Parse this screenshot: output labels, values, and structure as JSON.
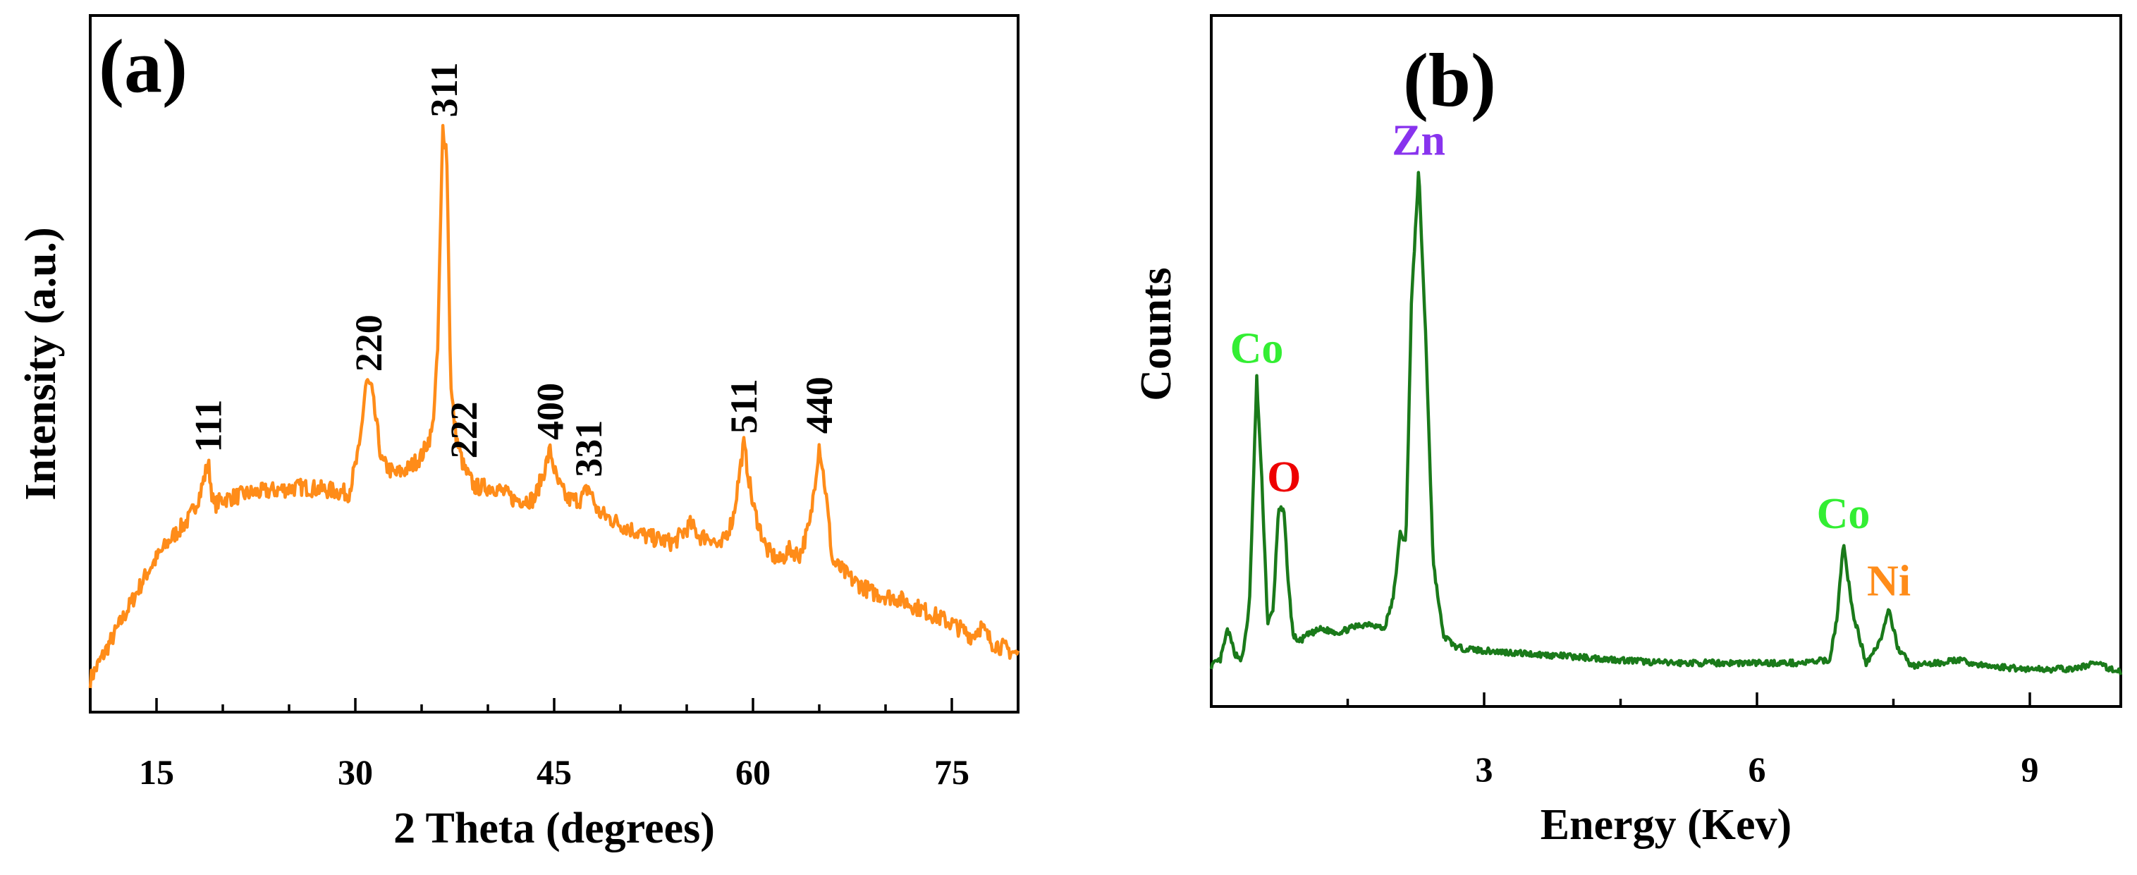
{
  "chart_data": [
    {
      "type": "line",
      "panel_label": "(a)",
      "title": "",
      "xlabel": "2 Theta (degrees)",
      "ylabel": "Intensity (a.u.)",
      "xlim": [
        10,
        80
      ],
      "ylim": [
        0,
        100
      ],
      "xticks": [
        15,
        30,
        45,
        60,
        75
      ],
      "yticks_shown": false,
      "line_color": "#FF8C19",
      "series": [
        {
          "name": "XRD pattern",
          "x": [
            10.0,
            11.5,
            13.0,
            14.5,
            16.0,
            17.5,
            18.3,
            18.9,
            19.3,
            20.0,
            22.0,
            24.0,
            26.0,
            28.0,
            29.5,
            30.3,
            30.8,
            31.2,
            31.6,
            32.0,
            33.0,
            34.0,
            35.0,
            35.8,
            36.2,
            36.6,
            36.9,
            37.2,
            37.6,
            38.2,
            39.0,
            40.5,
            42.0,
            43.5,
            44.3,
            44.7,
            45.2,
            46.0,
            47.0,
            47.6,
            48.3,
            50.0,
            52.0,
            54.0,
            55.3,
            56.0,
            56.8,
            57.5,
            58.5,
            59.3,
            60.0,
            61.0,
            62.0,
            62.8,
            63.5,
            64.3,
            65.0,
            65.5,
            66.0,
            67.5,
            69.0,
            71.0,
            73.0,
            75.0,
            76.5,
            77.2,
            78.0,
            80.0
          ],
          "y": [
            3.0,
            9.0,
            15.0,
            21.0,
            25.5,
            29.0,
            33.0,
            38.0,
            31.0,
            32.0,
            33.0,
            33.5,
            34.0,
            33.5,
            33.0,
            40.0,
            51.0,
            50.0,
            44.0,
            38.0,
            36.0,
            37.0,
            39.0,
            43.0,
            55.0,
            92.0,
            88.0,
            50.0,
            42.0,
            37.0,
            34.0,
            34.0,
            32.0,
            32.0,
            37.0,
            40.0,
            35.0,
            32.0,
            32.0,
            34.0,
            30.0,
            28.0,
            26.0,
            25.0,
            28.0,
            26.0,
            26.0,
            24.0,
            29.0,
            41.0,
            31.0,
            24.0,
            22.0,
            24.0,
            23.0,
            28.0,
            41.0,
            33.0,
            22.0,
            19.0,
            17.0,
            16.0,
            14.0,
            12.0,
            10.0,
            11.5,
            9.0,
            7.0
          ]
        }
      ],
      "annotations": [
        {
          "text": "111",
          "x": 18.9,
          "y": 38.0
        },
        {
          "text": "220",
          "x": 31.0,
          "y": 51.0
        },
        {
          "text": "311",
          "x": 36.7,
          "y": 92.0
        },
        {
          "text": "222",
          "x": 38.2,
          "y": 37.0
        },
        {
          "text": "400",
          "x": 44.7,
          "y": 40.0
        },
        {
          "text": "331",
          "x": 47.6,
          "y": 34.0
        },
        {
          "text": "511",
          "x": 59.3,
          "y": 41.0
        },
        {
          "text": "440",
          "x": 65.0,
          "y": 41.0
        }
      ]
    },
    {
      "type": "line",
      "panel_label": "(b)",
      "title": "",
      "xlabel": "Energy (Kev)",
      "ylabel": "Counts",
      "xlim": [
        0,
        10
      ],
      "ylim": [
        0,
        100
      ],
      "xticks": [
        3,
        6,
        9
      ],
      "yticks_shown": false,
      "line_color": "#1A7A1A",
      "series": [
        {
          "name": "EDS spectrum",
          "x": [
            0.0,
            0.1,
            0.18,
            0.26,
            0.34,
            0.42,
            0.5,
            0.56,
            0.62,
            0.68,
            0.74,
            0.8,
            0.85,
            0.9,
            0.97,
            1.05,
            1.2,
            1.4,
            1.6,
            1.75,
            1.9,
            2.0,
            2.08,
            2.14,
            2.2,
            2.28,
            2.36,
            2.44,
            2.55,
            2.7,
            3.0,
            4.0,
            5.0,
            6.0,
            6.5,
            6.8,
            6.88,
            6.95,
            7.05,
            7.2,
            7.35,
            7.45,
            7.55,
            7.7,
            8.0,
            8.2,
            8.5,
            9.0,
            9.5,
            9.7,
            10.0
          ],
          "y": [
            5.0,
            6.0,
            11.0,
            7.0,
            6.0,
            15.0,
            52.0,
            34.0,
            12.0,
            14.0,
            31.0,
            30.0,
            18.0,
            10.0,
            9.0,
            10.0,
            11.0,
            10.5,
            11.5,
            12.0,
            11.0,
            16.0,
            27.0,
            25.0,
            64.0,
            86.0,
            58.0,
            22.0,
            10.0,
            8.0,
            7.5,
            6.5,
            5.5,
            5.5,
            5.5,
            6.0,
            13.0,
            25.0,
            14.0,
            5.5,
            9.0,
            14.0,
            8.0,
            5.0,
            5.5,
            6.0,
            5.0,
            4.5,
            4.5,
            5.5,
            4.0
          ]
        }
      ],
      "annotations": [
        {
          "text": "Co",
          "x": 0.5,
          "y": 52.0,
          "color": "#33EE33"
        },
        {
          "text": "O",
          "x": 0.8,
          "y": 31.0,
          "color": "#EE0000"
        },
        {
          "text": "Zn",
          "x": 2.28,
          "y": 86.0,
          "color": "#8833EE"
        },
        {
          "text": "Co",
          "x": 6.95,
          "y": 25.0,
          "color": "#33EE33"
        },
        {
          "text": "Ni",
          "x": 7.45,
          "y": 14.0,
          "color": "#FF8C19"
        }
      ]
    }
  ]
}
